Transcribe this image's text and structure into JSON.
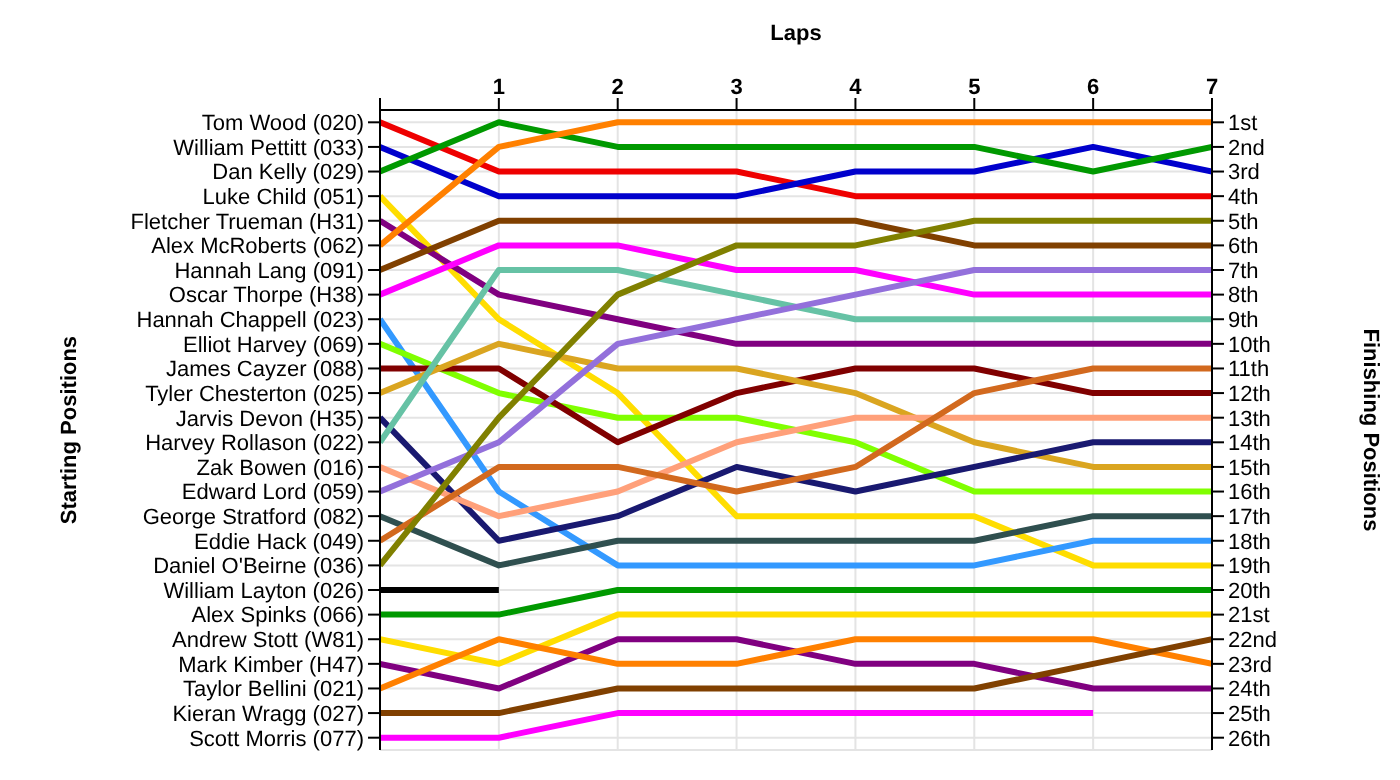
{
  "chart_data": {
    "type": "line",
    "xlabel": "Laps",
    "annotations": [
      "Starting Positions"
    ],
    "y2label": "Finishing Positions",
    "grid": true,
    "x": [
      0,
      1,
      2,
      3,
      4,
      5,
      6,
      7
    ],
    "xlim": [
      0,
      7
    ],
    "xticks": [
      {
        "value": 0,
        "label": null
      },
      1,
      2,
      3,
      4,
      5,
      6,
      7
    ],
    "y_categories": [
      "Tom Wood (020)",
      "William Pettitt (033)",
      "Dan Kelly (029)",
      "Luke Child (051)",
      "Fletcher Trueman (H31)",
      "Alex McRoberts (062)",
      "Hannah Lang (091)",
      "Oscar Thorpe (H38)",
      "Hannah Chappell (023)",
      "Elliot Harvey (069)",
      "James Cayzer (088)",
      "Tyler Chesterton (025)",
      "Jarvis Devon (H35)",
      "Harvey Rollason (022)",
      "Zak Bowen (016)",
      "Edward Lord (059)",
      "George Stratford (082)",
      "Eddie Hack (049)",
      "Daniel O'Beirne (036)",
      "William Layton (026)",
      "Alex Spinks (066)",
      "Andrew Stott (W81)",
      "Mark Kimber (H47)",
      "Taylor Bellini (021)",
      "Kieran Wragg (027)",
      "Scott Morris (077)"
    ],
    "y2lim": [
      26.5,
      0.5
    ],
    "y2ticks": [
      {
        "value": 1,
        "label": "1st"
      },
      {
        "value": 2,
        "label": "2nd"
      },
      {
        "value": 3,
        "label": "3rd"
      },
      {
        "value": 4,
        "label": "4th"
      },
      {
        "value": 5,
        "label": "5th"
      },
      {
        "value": 6,
        "label": "6th"
      },
      {
        "value": 7,
        "label": "7th"
      },
      {
        "value": 8,
        "label": "8th"
      },
      {
        "value": 9,
        "label": "9th"
      },
      {
        "value": 10,
        "label": "10th"
      },
      {
        "value": 11,
        "label": "11th"
      },
      {
        "value": 12,
        "label": "12th"
      },
      {
        "value": 13,
        "label": "13th"
      },
      {
        "value": 14,
        "label": "14th"
      },
      {
        "value": 15,
        "label": "15th"
      },
      {
        "value": 16,
        "label": "16th"
      },
      {
        "value": 17,
        "label": "17th"
      },
      {
        "value": 18,
        "label": "18th"
      },
      {
        "value": 19,
        "label": "19th"
      },
      {
        "value": 20,
        "label": "20th"
      },
      {
        "value": 21,
        "label": "21st"
      },
      {
        "value": 22,
        "label": "22nd"
      },
      {
        "value": 23,
        "label": "23rd"
      },
      {
        "value": 24,
        "label": "24th"
      },
      {
        "value": 25,
        "label": "25th"
      },
      {
        "value": 26,
        "label": "26th"
      }
    ],
    "series": [
      {
        "axis": "y2",
        "color": "#ee0000",
        "values": [
          1,
          3,
          3,
          3,
          4,
          4,
          4,
          4
        ]
      },
      {
        "axis": "y2",
        "color": "#0000cc",
        "values": [
          2,
          4,
          4,
          4,
          3,
          3,
          2,
          3
        ]
      },
      {
        "axis": "y2",
        "color": "#009900",
        "values": [
          3,
          1,
          2,
          2,
          2,
          2,
          3,
          2
        ]
      },
      {
        "axis": "y2",
        "color": "#ffdd00",
        "values": [
          4,
          9,
          12,
          17,
          17,
          17,
          19,
          19
        ]
      },
      {
        "axis": "y2",
        "color": "#800080",
        "values": [
          5,
          8,
          9,
          10,
          10,
          10,
          10,
          10
        ]
      },
      {
        "axis": "y2",
        "color": "#ff8000",
        "values": [
          6,
          2,
          1,
          1,
          1,
          1,
          1,
          1
        ]
      },
      {
        "axis": "y2",
        "color": "#804000",
        "values": [
          7,
          5,
          5,
          5,
          5,
          6,
          6,
          6
        ]
      },
      {
        "axis": "y2",
        "color": "#ff00ff",
        "values": [
          8,
          6,
          6,
          7,
          7,
          8,
          8,
          8
        ]
      },
      {
        "axis": "y2",
        "color": "#3399ff",
        "values": [
          9,
          16,
          19,
          19,
          19,
          19,
          18,
          18
        ]
      },
      {
        "axis": "y2",
        "color": "#80ff00",
        "values": [
          10,
          12,
          13,
          13,
          14,
          16,
          16,
          16
        ]
      },
      {
        "axis": "y2",
        "color": "#800000",
        "values": [
          11,
          11,
          14,
          12,
          11,
          11,
          12,
          12
        ]
      },
      {
        "axis": "y2",
        "color": "#daa520",
        "values": [
          12,
          10,
          11,
          11,
          12,
          14,
          15,
          15
        ]
      },
      {
        "axis": "y2",
        "color": "#191970",
        "values": [
          13,
          18,
          17,
          15,
          16,
          15,
          14,
          14
        ]
      },
      {
        "axis": "y2",
        "color": "#66c2a5",
        "values": [
          14,
          7,
          7,
          8,
          9,
          9,
          9,
          9
        ]
      },
      {
        "axis": "y2",
        "color": "#ffa07a",
        "values": [
          15,
          17,
          16,
          14,
          13,
          13,
          13,
          13
        ]
      },
      {
        "axis": "y2",
        "color": "#9370db",
        "values": [
          16,
          14,
          10,
          9,
          8,
          7,
          7,
          7
        ]
      },
      {
        "axis": "y2",
        "color": "#2f4f4f",
        "values": [
          17,
          19,
          18,
          18,
          18,
          18,
          17,
          17
        ]
      },
      {
        "axis": "y2",
        "color": "#d2691e",
        "values": [
          18,
          15,
          15,
          16,
          15,
          12,
          11,
          11
        ]
      },
      {
        "axis": "y2",
        "color": "#808000",
        "values": [
          19,
          13,
          8,
          6,
          6,
          5,
          5,
          5
        ]
      },
      {
        "axis": "y2",
        "color": "#000000",
        "values": [
          20,
          20,
          null,
          null,
          null,
          null,
          null,
          null
        ]
      },
      {
        "axis": "y2",
        "color": "#009900",
        "values": [
          21,
          21,
          20,
          20,
          20,
          20,
          20,
          20
        ]
      },
      {
        "axis": "y2",
        "color": "#ffdd00",
        "values": [
          22,
          23,
          21,
          21,
          21,
          21,
          21,
          21
        ]
      },
      {
        "axis": "y2",
        "color": "#800080",
        "values": [
          23,
          24,
          22,
          22,
          23,
          23,
          24,
          24
        ]
      },
      {
        "axis": "y2",
        "color": "#ff8000",
        "values": [
          24,
          22,
          23,
          23,
          22,
          22,
          22,
          23
        ]
      },
      {
        "axis": "y2",
        "color": "#804000",
        "values": [
          25,
          25,
          24,
          24,
          24,
          24,
          23,
          22
        ]
      },
      {
        "axis": "y2",
        "color": "#ff00ff",
        "values": [
          26,
          26,
          25,
          25,
          25,
          25,
          25,
          null
        ]
      }
    ]
  }
}
